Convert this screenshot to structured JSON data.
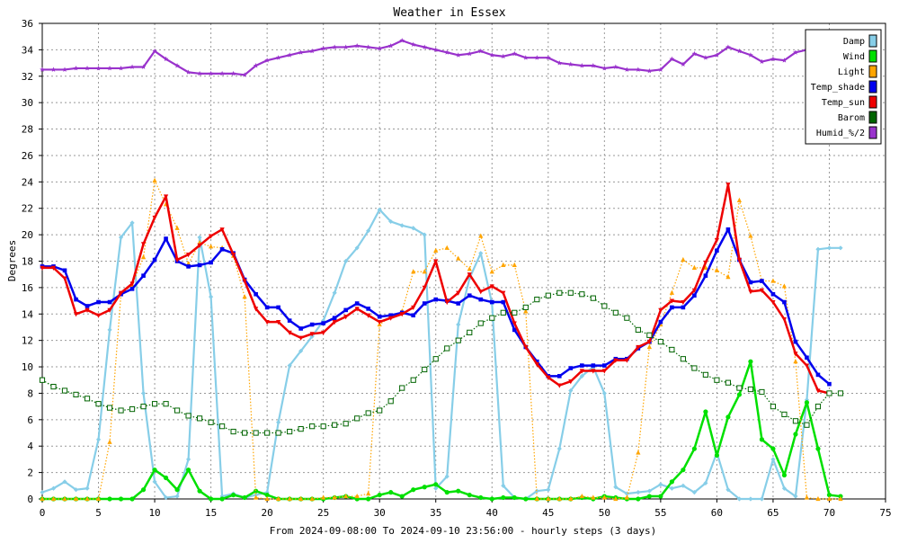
{
  "chart_data": {
    "type": "line",
    "title": "Weather in Essex",
    "xlabel": "From 2024-09-08:00 To 2024-09-10 23:56:00 - hourly steps (3 days)",
    "ylabel": "Degrees",
    "xlim": [
      0,
      75
    ],
    "ylim": [
      0,
      36
    ],
    "xticks": [
      "0",
      "5",
      "10",
      "15",
      "20",
      "25",
      "30",
      "35",
      "40",
      "45",
      "50",
      "55",
      "60",
      "65",
      "70",
      "75"
    ],
    "yticks": [
      "0",
      "2",
      "4",
      "6",
      "8",
      "10",
      "12",
      "14",
      "16",
      "18",
      "20",
      "22",
      "24",
      "26",
      "28",
      "30",
      "32",
      "34",
      "36"
    ],
    "grid": true,
    "legend_position": "top-right",
    "series": [
      {
        "name": "Damp",
        "color": "#87cee8",
        "style": "solid",
        "marker": "diamond",
        "values": [
          0.5,
          0.8,
          1.3,
          0.7,
          0.8,
          4.5,
          12.8,
          19.8,
          20.9,
          8.0,
          1.3,
          0.1,
          0.2,
          3.0,
          19.8,
          15.3,
          0.2,
          0.4,
          0.1,
          0.3,
          0.5,
          5.8,
          10.1,
          11.2,
          12.3,
          13.5,
          15.6,
          18.0,
          19.0,
          20.3,
          21.9,
          21.0,
          20.7,
          20.5,
          20.0,
          0.8,
          1.7,
          13.2,
          16.7,
          18.6,
          14.8,
          1.0,
          0.1,
          0.0,
          0.6,
          0.7,
          3.8,
          8.2,
          9.3,
          10.0,
          8.0,
          0.9,
          0.4,
          0.5,
          0.6,
          1.1,
          0.8,
          1.0,
          0.5,
          1.2,
          3.5,
          0.7,
          0.0,
          0.0,
          0.0,
          3.0,
          0.8,
          0.2,
          7.5,
          18.9,
          19.0,
          19.0
        ]
      },
      {
        "name": "Wind",
        "color": "#00e000",
        "style": "solid",
        "marker": "circle",
        "values": [
          0.0,
          0.0,
          0.0,
          0.0,
          0.0,
          0.0,
          0.0,
          0.0,
          0.0,
          0.7,
          2.2,
          1.6,
          0.7,
          2.2,
          0.6,
          0.0,
          0.0,
          0.3,
          0.1,
          0.6,
          0.3,
          0.0,
          0.0,
          0.0,
          0.0,
          0.0,
          0.1,
          0.2,
          0.0,
          0.0,
          0.3,
          0.5,
          0.2,
          0.7,
          0.9,
          1.1,
          0.5,
          0.6,
          0.3,
          0.1,
          0.0,
          0.1,
          0.1,
          0.0,
          0.0,
          0.0,
          0.0,
          0.0,
          0.1,
          0.0,
          0.2,
          0.1,
          0.0,
          0.0,
          0.2,
          0.2,
          1.3,
          2.2,
          3.8,
          6.6,
          3.3,
          6.2,
          7.9,
          10.4,
          4.5,
          3.8,
          1.8,
          4.9,
          7.3,
          3.8,
          0.3,
          0.2
        ]
      },
      {
        "name": "Light",
        "color": "#ffa500",
        "style": "dotted",
        "marker": "triangle",
        "values": [
          0.0,
          0.0,
          0.0,
          0.0,
          0.0,
          0.0,
          4.3,
          15.5,
          16.2,
          18.3,
          24.1,
          22.3,
          20.5,
          17.8,
          19.4,
          19.1,
          19.0,
          18.4,
          15.3,
          0.1,
          0.0,
          0.0,
          0.0,
          0.0,
          0.0,
          0.1,
          0.1,
          0.2,
          0.2,
          0.4,
          13.2,
          13.8,
          14.2,
          17.2,
          17.2,
          18.8,
          19.0,
          18.2,
          17.4,
          19.9,
          17.2,
          17.7,
          17.7,
          14.2,
          0.0,
          0.0,
          0.0,
          0.0,
          0.2,
          0.1,
          0.1,
          0.0,
          0.1,
          3.5,
          11.5,
          13.2,
          15.6,
          18.1,
          17.5,
          17.5,
          17.3,
          16.8,
          22.6,
          19.9,
          16.5,
          16.5,
          16.1,
          10.4,
          0.1,
          0.0,
          0.0,
          0.0
        ]
      },
      {
        "name": "Temp_shade",
        "color": "#0000ee",
        "style": "solid",
        "marker": "square",
        "values": [
          17.6,
          17.6,
          17.3,
          15.1,
          14.6,
          14.9,
          14.9,
          15.5,
          15.9,
          16.9,
          18.1,
          19.7,
          18.0,
          17.6,
          17.7,
          17.9,
          18.9,
          18.6,
          16.6,
          15.5,
          14.5,
          14.5,
          13.5,
          12.9,
          13.2,
          13.3,
          13.7,
          14.3,
          14.8,
          14.4,
          13.8,
          13.9,
          14.1,
          13.9,
          14.8,
          15.1,
          15.0,
          14.8,
          15.4,
          15.1,
          14.9,
          14.9,
          12.8,
          11.5,
          10.4,
          9.3,
          9.3,
          9.9,
          10.1,
          10.1,
          10.1,
          10.6,
          10.6,
          11.4,
          11.9,
          13.4,
          14.5,
          14.5,
          15.4,
          16.9,
          18.8,
          20.4,
          18.1,
          16.4,
          16.5,
          15.5,
          14.9,
          11.9,
          10.7,
          9.4,
          8.7
        ]
      },
      {
        "name": "Temp_sun",
        "color": "#ee0000",
        "style": "solid",
        "marker": "triangle-down",
        "values": [
          17.5,
          17.5,
          16.7,
          14.0,
          14.3,
          13.9,
          14.3,
          15.6,
          16.3,
          19.3,
          21.3,
          22.9,
          18.1,
          18.5,
          19.2,
          19.9,
          20.4,
          18.5,
          16.5,
          14.4,
          13.4,
          13.4,
          12.6,
          12.2,
          12.5,
          12.6,
          13.4,
          13.8,
          14.4,
          13.9,
          13.4,
          13.7,
          14.0,
          14.5,
          16.0,
          18.0,
          14.9,
          15.6,
          17.0,
          15.7,
          16.1,
          15.6,
          13.3,
          11.5,
          10.2,
          9.2,
          8.6,
          8.9,
          9.7,
          9.7,
          9.7,
          10.5,
          10.5,
          11.5,
          11.9,
          14.3,
          15.0,
          14.9,
          15.8,
          17.9,
          19.6,
          23.8,
          18.1,
          15.7,
          15.8,
          14.9,
          13.6,
          11.0,
          10.1,
          8.2,
          8.0
        ]
      },
      {
        "name": "Barom",
        "color": "#006400",
        "style": "dotted",
        "marker": "square-open",
        "values": [
          9.0,
          8.5,
          8.2,
          7.9,
          7.6,
          7.2,
          6.9,
          6.7,
          6.8,
          7.0,
          7.2,
          7.2,
          6.7,
          6.3,
          6.1,
          5.8,
          5.5,
          5.1,
          5.0,
          5.0,
          5.0,
          5.0,
          5.1,
          5.3,
          5.5,
          5.5,
          5.6,
          5.7,
          6.1,
          6.5,
          6.7,
          7.4,
          8.4,
          9.0,
          9.8,
          10.6,
          11.4,
          12.0,
          12.6,
          13.3,
          13.7,
          14.1,
          14.1,
          14.5,
          15.1,
          15.4,
          15.6,
          15.6,
          15.5,
          15.2,
          14.6,
          14.1,
          13.7,
          12.8,
          12.4,
          11.9,
          11.3,
          10.6,
          9.9,
          9.4,
          9.0,
          8.8,
          8.4,
          8.3,
          8.1,
          7.0,
          6.4,
          5.9,
          5.6,
          7.0,
          8.0,
          8.0
        ]
      },
      {
        "name": "Humid_%/2",
        "color": "#9932cc",
        "style": "solid",
        "marker": "star",
        "values": [
          32.5,
          32.5,
          32.5,
          32.6,
          32.6,
          32.6,
          32.6,
          32.6,
          32.7,
          32.7,
          33.9,
          33.3,
          32.8,
          32.3,
          32.2,
          32.2,
          32.2,
          32.2,
          32.1,
          32.8,
          33.2,
          33.4,
          33.6,
          33.8,
          33.9,
          34.1,
          34.2,
          34.2,
          34.3,
          34.2,
          34.1,
          34.3,
          34.7,
          34.4,
          34.2,
          34.0,
          33.8,
          33.6,
          33.7,
          33.9,
          33.6,
          33.5,
          33.7,
          33.4,
          33.4,
          33.4,
          33.0,
          32.9,
          32.8,
          32.8,
          32.6,
          32.7,
          32.5,
          32.5,
          32.4,
          32.5,
          33.3,
          32.9,
          33.7,
          33.4,
          33.6,
          34.2,
          33.9,
          33.6,
          33.1,
          33.3,
          33.2,
          33.8,
          34.0,
          34.0
        ]
      }
    ]
  }
}
